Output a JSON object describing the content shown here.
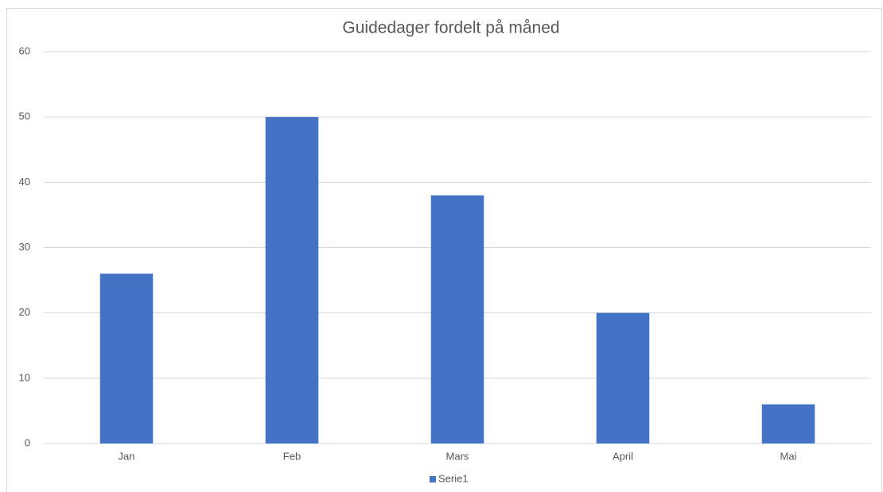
{
  "chart_data": {
    "type": "bar",
    "title": "Guidedager fordelt på måned",
    "categories": [
      "Jan",
      "Feb",
      "Mars",
      "April",
      "Mai"
    ],
    "series": [
      {
        "name": "Serie1",
        "color": "#4472c4",
        "values": [
          26,
          50,
          38,
          20,
          6
        ]
      }
    ],
    "ylim": [
      0,
      60
    ],
    "yticks": [
      0,
      10,
      20,
      30,
      40,
      50,
      60
    ],
    "grid": true,
    "legend": "bottom"
  }
}
